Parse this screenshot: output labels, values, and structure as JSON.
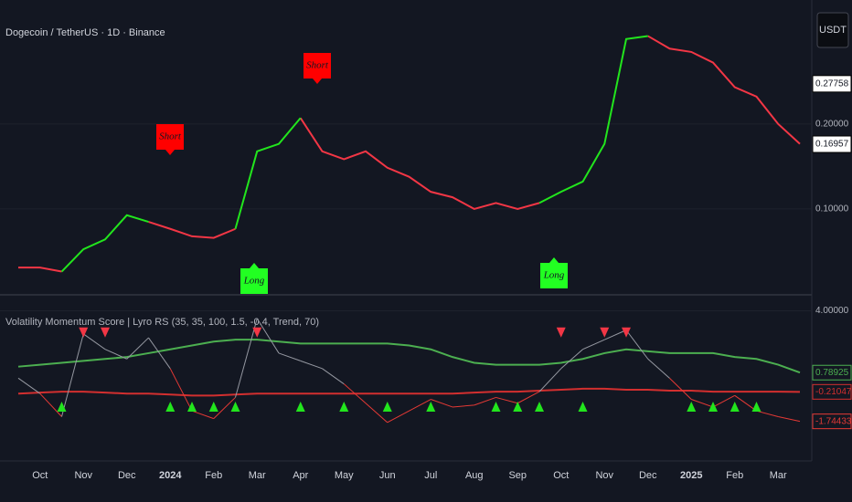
{
  "chart_data": [
    {
      "type": "line",
      "title": "Dogecoin / TetherUS · 1D · Binance",
      "currency": "USDT",
      "log_scale": true,
      "ylim": [
        0.05,
        0.55
      ],
      "yticks": [
        {
          "value": 0.1,
          "label": "0.10000"
        },
        {
          "value": 0.2,
          "label": "0.20000"
        }
      ],
      "price_labels": [
        0.27758,
        0.16957
      ],
      "annotations": [
        "Short",
        "Short",
        "Long",
        "Long"
      ],
      "series": [
        {
          "color": "#f23645",
          "values": [
            0.062,
            0.062,
            0.06,
            null,
            null,
            null,
            0.09,
            0.085,
            0.08,
            0.079,
            0.085,
            null,
            null,
            0.21,
            0.16,
            0.15,
            0.16,
            0.14,
            0.13,
            0.115,
            0.11,
            0.1,
            0.105,
            0.1,
            0.105,
            null,
            null,
            null,
            null,
            0.41,
            0.37,
            0.36,
            0.33,
            0.27,
            0.25,
            0.2,
            0.17
          ]
        },
        {
          "color": "#22e51d",
          "values": [
            null,
            null,
            0.06,
            0.072,
            0.078,
            0.095,
            0.09,
            null,
            null,
            null,
            0.085,
            0.16,
            0.17,
            0.21,
            null,
            null,
            null,
            null,
            null,
            null,
            null,
            null,
            null,
            null,
            0.105,
            0.115,
            0.125,
            0.17,
            0.4,
            0.41,
            null,
            null,
            null,
            null,
            null,
            null,
            null
          ]
        }
      ]
    },
    {
      "type": "line",
      "title": "Volatility Momentum Score | Lyro RS (35, 35, 100, 1.5, -0.4, Trend, 70)",
      "categories": [
        null,
        "Oct",
        null,
        "Nov",
        null,
        "Dec",
        null,
        "2024",
        null,
        "Feb",
        null,
        "Mar",
        null,
        "Apr",
        null,
        "May",
        null,
        "Jun",
        null,
        "Jul",
        null,
        "Aug",
        null,
        "Sep",
        null,
        "Oct",
        null,
        "Nov",
        null,
        "Dec",
        null,
        "2025",
        null,
        "Feb",
        null,
        "Mar",
        null
      ],
      "ylim": [
        -3.8,
        4.5
      ],
      "yticks": [
        {
          "value": 4,
          "label": "4.00000"
        }
      ],
      "series": [
        {
          "color": "#4caf50",
          "values": [
            1.1,
            1.2,
            1.3,
            1.4,
            1.5,
            1.6,
            1.8,
            2.0,
            2.2,
            2.4,
            2.5,
            2.5,
            2.4,
            2.3,
            2.3,
            2.3,
            2.3,
            2.3,
            2.2,
            2.0,
            1.6,
            1.3,
            1.2,
            1.2,
            1.2,
            1.3,
            1.5,
            1.8,
            2.0,
            1.9,
            1.8,
            1.8,
            1.8,
            1.6,
            1.5,
            1.2,
            0.78925
          ]
        },
        {
          "color": "#d32f2f",
          "values": [
            -0.3,
            -0.25,
            -0.2,
            -0.2,
            -0.25,
            -0.3,
            -0.3,
            -0.35,
            -0.4,
            -0.4,
            -0.35,
            -0.3,
            -0.3,
            -0.3,
            -0.3,
            -0.3,
            -0.3,
            -0.3,
            -0.3,
            -0.3,
            -0.3,
            -0.25,
            -0.2,
            -0.2,
            -0.15,
            -0.1,
            -0.05,
            -0.05,
            -0.1,
            -0.1,
            -0.15,
            -0.15,
            -0.2,
            -0.2,
            -0.2,
            -0.2,
            -0.21047
          ]
        },
        {
          "color": "#9598a1",
          "negative_color": "#e53935",
          "values": [
            0.5,
            -0.3,
            -1.5,
            2.8,
            2.0,
            1.5,
            2.6,
            1.0,
            -1.2,
            -1.6,
            -0.5,
            3.6,
            1.8,
            1.4,
            1.0,
            0.2,
            -0.8,
            -1.8,
            -1.2,
            -0.6,
            -1.0,
            -0.9,
            -0.5,
            -0.8,
            -0.2,
            1.0,
            2.0,
            2.5,
            3.0,
            1.5,
            0.5,
            -0.6,
            -1.0,
            -0.4,
            -1.2,
            -1.5,
            -1.74433
          ]
        },
        {
          "color": "#22e51d",
          "marker": "triangle-up",
          "values": [
            null,
            null,
            -1,
            null,
            null,
            null,
            null,
            -1,
            -1,
            -1,
            -1,
            null,
            null,
            -1,
            null,
            -1,
            null,
            -1,
            null,
            -1,
            null,
            null,
            -1,
            -1,
            -1,
            null,
            -1,
            null,
            null,
            null,
            null,
            -1,
            -1,
            -1,
            -1,
            null,
            null
          ]
        },
        {
          "color": "#f23645",
          "marker": "triangle-down",
          "values": [
            null,
            null,
            null,
            2.9,
            2.9,
            null,
            null,
            null,
            null,
            null,
            null,
            2.9,
            null,
            null,
            null,
            null,
            null,
            null,
            null,
            null,
            null,
            null,
            null,
            null,
            null,
            2.9,
            null,
            2.9,
            2.9,
            null,
            null,
            null,
            null,
            null,
            null,
            null,
            null
          ]
        }
      ]
    }
  ]
}
